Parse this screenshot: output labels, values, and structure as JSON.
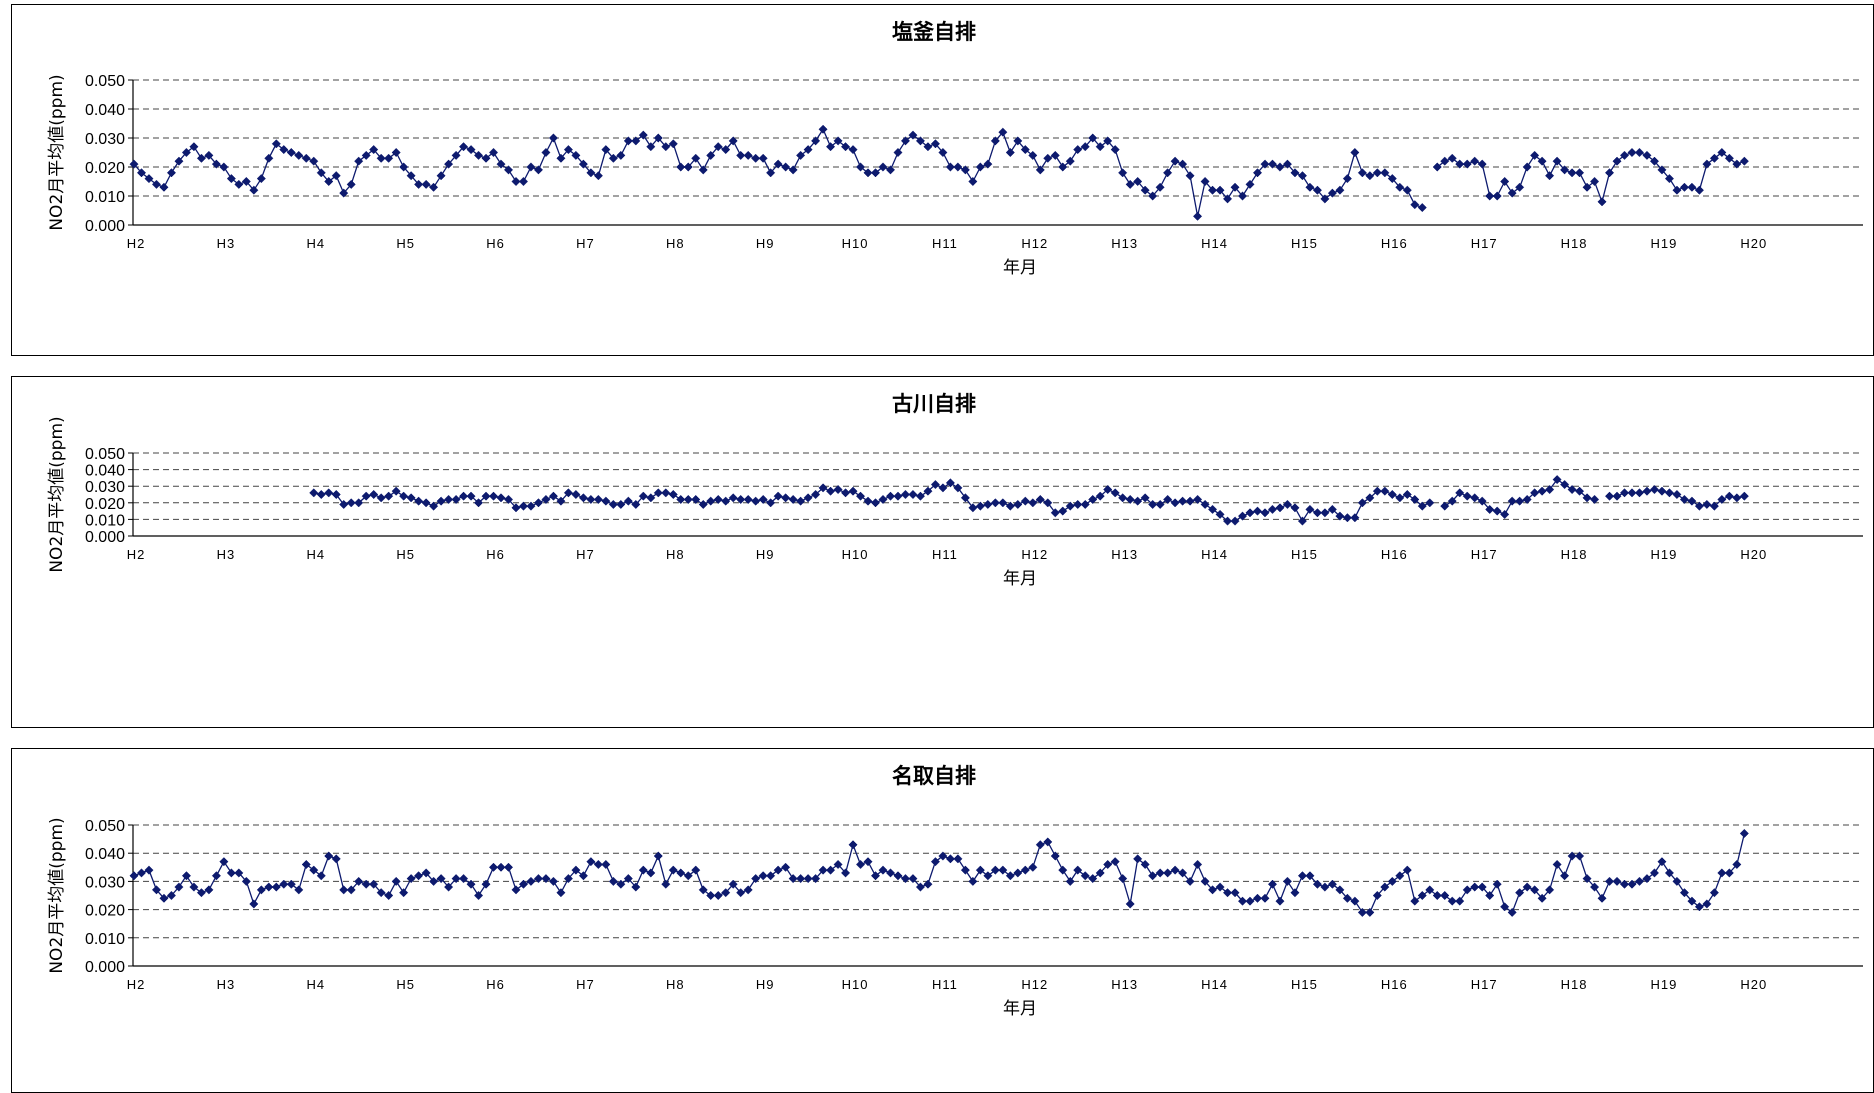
{
  "series_color": "#0d1a6e",
  "chart_data": [
    {
      "type": "line",
      "title": "塩釜自排",
      "xlabel": "年月",
      "ylabel": "NO2月平均値(ppm)",
      "ylim": [
        0,
        0.05
      ],
      "yticks": [
        "0.000",
        "0.010",
        "0.020",
        "0.030",
        "0.040",
        "0.050"
      ],
      "x_tick_labels": [
        "H2",
        "H3",
        "H4",
        "H5",
        "H6",
        "H7",
        "H8",
        "H9",
        "H10",
        "H11",
        "H12",
        "H13",
        "H14",
        "H15",
        "H16",
        "H17",
        "H18",
        "H19",
        "H20"
      ],
      "grid": "horizontal dashed",
      "start": "H2 April",
      "values": [
        0.021,
        0.018,
        0.016,
        0.014,
        0.013,
        0.018,
        0.022,
        0.025,
        0.027,
        0.023,
        0.024,
        0.021,
        0.02,
        0.016,
        0.014,
        0.015,
        0.012,
        0.016,
        0.023,
        0.028,
        0.026,
        0.025,
        0.024,
        0.023,
        0.022,
        0.018,
        0.015,
        0.017,
        0.011,
        0.014,
        0.022,
        0.024,
        0.026,
        0.023,
        0.023,
        0.025,
        0.02,
        0.017,
        0.014,
        0.014,
        0.013,
        0.017,
        0.021,
        0.024,
        0.027,
        0.026,
        0.024,
        0.023,
        0.025,
        0.021,
        0.019,
        0.015,
        0.015,
        0.02,
        0.019,
        0.025,
        0.03,
        0.023,
        0.026,
        0.024,
        0.021,
        0.018,
        0.017,
        0.026,
        0.023,
        0.024,
        0.029,
        0.029,
        0.031,
        0.027,
        0.03,
        0.027,
        0.028,
        0.02,
        0.02,
        0.023,
        0.019,
        0.024,
        0.027,
        0.026,
        0.029,
        0.024,
        0.024,
        0.023,
        0.023,
        0.018,
        0.021,
        0.02,
        0.019,
        0.024,
        0.026,
        0.029,
        0.033,
        0.027,
        0.029,
        0.027,
        0.026,
        0.02,
        0.018,
        0.018,
        0.02,
        0.019,
        0.025,
        0.029,
        0.031,
        0.029,
        0.027,
        0.028,
        0.025,
        0.02,
        0.02,
        0.019,
        0.015,
        0.02,
        0.021,
        0.029,
        0.032,
        0.025,
        0.029,
        0.026,
        0.024,
        0.019,
        0.023,
        0.024,
        0.02,
        0.022,
        0.026,
        0.027,
        0.03,
        0.027,
        0.029,
        0.026,
        0.018,
        0.014,
        0.015,
        0.012,
        0.01,
        0.013,
        0.018,
        0.022,
        0.021,
        0.017,
        0.003,
        0.015,
        0.012,
        0.012,
        0.009,
        0.013,
        0.01,
        0.014,
        0.018,
        0.021,
        0.021,
        0.02,
        0.021,
        0.018,
        0.017,
        0.013,
        0.012,
        0.009,
        0.011,
        0.012,
        0.016,
        0.025,
        0.018,
        0.017,
        0.018,
        0.018,
        0.016,
        0.013,
        0.012,
        0.007,
        0.006,
        null,
        0.02,
        0.022,
        0.023,
        0.021,
        0.021,
        0.022,
        0.021,
        0.01,
        0.01,
        0.015,
        0.011,
        0.013,
        0.02,
        0.024,
        0.022,
        0.017,
        0.022,
        0.019,
        0.018,
        0.018,
        0.013,
        0.015,
        0.008,
        0.018,
        0.022,
        0.024,
        0.025,
        0.025,
        0.024,
        0.022,
        0.019,
        0.016,
        0.012,
        0.013,
        0.013,
        0.012,
        0.021,
        0.023,
        0.025,
        0.023,
        0.021,
        0.022
      ]
    },
    {
      "type": "line",
      "title": "古川自排",
      "xlabel": "年月",
      "ylabel": "NO2月平均値(ppm)",
      "ylim": [
        0,
        0.05
      ],
      "yticks": [
        "0.000",
        "0.010",
        "0.020",
        "0.030",
        "0.040",
        "0.050"
      ],
      "x_tick_labels": [
        "H2",
        "H3",
        "H4",
        "H5",
        "H6",
        "H7",
        "H8",
        "H9",
        "H10",
        "H11",
        "H12",
        "H13",
        "H14",
        "H15",
        "H16",
        "H17",
        "H18",
        "H19",
        "H20"
      ],
      "grid": "horizontal dashed",
      "start": "H2 April",
      "values": [
        null,
        null,
        null,
        null,
        null,
        null,
        null,
        null,
        null,
        null,
        null,
        null,
        null,
        null,
        null,
        null,
        null,
        null,
        null,
        null,
        null,
        null,
        null,
        null,
        0.026,
        0.025,
        0.026,
        0.025,
        0.019,
        0.02,
        0.02,
        0.024,
        0.025,
        0.023,
        0.024,
        0.027,
        0.024,
        0.023,
        0.021,
        0.02,
        0.018,
        0.021,
        0.022,
        0.022,
        0.024,
        0.024,
        0.02,
        0.024,
        0.024,
        0.023,
        0.022,
        0.017,
        0.018,
        0.018,
        0.02,
        0.022,
        0.024,
        0.021,
        0.026,
        0.025,
        0.023,
        0.022,
        0.022,
        0.021,
        0.019,
        0.019,
        0.021,
        0.019,
        0.024,
        0.023,
        0.026,
        0.026,
        0.025,
        0.022,
        0.022,
        0.022,
        0.019,
        0.021,
        0.022,
        0.021,
        0.023,
        0.022,
        0.022,
        0.021,
        0.022,
        0.02,
        0.024,
        0.023,
        0.022,
        0.021,
        0.023,
        0.025,
        0.029,
        0.027,
        0.028,
        0.026,
        0.027,
        0.024,
        0.021,
        0.02,
        0.022,
        0.024,
        0.024,
        0.025,
        0.025,
        0.024,
        0.027,
        0.031,
        0.029,
        0.032,
        0.029,
        0.023,
        0.017,
        0.018,
        0.019,
        0.02,
        0.02,
        0.018,
        0.019,
        0.021,
        0.02,
        0.022,
        0.02,
        0.014,
        0.015,
        0.018,
        0.019,
        0.019,
        0.022,
        0.024,
        0.028,
        0.026,
        0.023,
        0.022,
        0.021,
        0.023,
        0.019,
        0.019,
        0.022,
        0.02,
        0.021,
        0.021,
        0.022,
        0.019,
        0.016,
        0.013,
        0.009,
        0.009,
        0.012,
        0.014,
        0.015,
        0.014,
        0.016,
        0.017,
        0.019,
        0.017,
        0.009,
        0.016,
        0.014,
        0.014,
        0.016,
        0.012,
        0.011,
        0.011,
        0.02,
        0.023,
        0.027,
        0.027,
        0.025,
        0.023,
        0.025,
        0.022,
        0.018,
        0.02,
        null,
        0.018,
        0.021,
        0.026,
        0.024,
        0.023,
        0.021,
        0.016,
        0.015,
        0.013,
        0.021,
        0.021,
        0.022,
        0.026,
        0.027,
        0.028,
        0.034,
        0.031,
        0.028,
        0.027,
        0.023,
        0.022,
        null,
        0.024,
        0.024,
        0.026,
        0.026,
        0.026,
        0.027,
        0.028,
        0.027,
        0.026,
        0.025,
        0.022,
        0.021,
        0.018,
        0.019,
        0.018,
        0.022,
        0.024,
        0.023,
        0.024
      ]
    },
    {
      "type": "line",
      "title": "名取自排",
      "xlabel": "年月",
      "ylabel": "NO2月平均値(ppm)",
      "ylim": [
        0,
        0.05
      ],
      "yticks": [
        "0.000",
        "0.010",
        "0.020",
        "0.030",
        "0.040",
        "0.050"
      ],
      "x_tick_labels": [
        "H2",
        "H3",
        "H4",
        "H5",
        "H6",
        "H7",
        "H8",
        "H9",
        "H10",
        "H11",
        "H12",
        "H13",
        "H14",
        "H15",
        "H16",
        "H17",
        "H18",
        "H19",
        "H20"
      ],
      "grid": "horizontal dashed",
      "start": "H2 April",
      "values": [
        0.032,
        0.033,
        0.034,
        0.027,
        0.024,
        0.025,
        0.028,
        0.032,
        0.028,
        0.026,
        0.027,
        0.032,
        0.037,
        0.033,
        0.033,
        0.03,
        0.022,
        0.027,
        0.028,
        0.028,
        0.029,
        0.029,
        0.027,
        0.036,
        0.034,
        0.032,
        0.039,
        0.038,
        0.027,
        0.027,
        0.03,
        0.029,
        0.029,
        0.026,
        0.025,
        0.03,
        0.026,
        0.031,
        0.032,
        0.033,
        0.03,
        0.031,
        0.028,
        0.031,
        0.031,
        0.029,
        0.025,
        0.029,
        0.035,
        0.035,
        0.035,
        0.027,
        0.029,
        0.03,
        0.031,
        0.031,
        0.03,
        0.026,
        0.031,
        0.034,
        0.032,
        0.037,
        0.036,
        0.036,
        0.03,
        0.029,
        0.031,
        0.028,
        0.034,
        0.033,
        0.039,
        0.029,
        0.034,
        0.033,
        0.032,
        0.034,
        0.027,
        0.025,
        0.025,
        0.026,
        0.029,
        0.026,
        0.027,
        0.031,
        0.032,
        0.032,
        0.034,
        0.035,
        0.031,
        0.031,
        0.031,
        0.031,
        0.034,
        0.034,
        0.036,
        0.033,
        0.043,
        0.036,
        0.037,
        0.032,
        0.034,
        0.033,
        0.032,
        0.031,
        0.031,
        0.028,
        0.029,
        0.037,
        0.039,
        0.038,
        0.038,
        0.034,
        0.03,
        0.034,
        0.032,
        0.034,
        0.034,
        0.032,
        0.033,
        0.034,
        0.035,
        0.043,
        0.044,
        0.039,
        0.034,
        0.03,
        0.034,
        0.032,
        0.031,
        0.033,
        0.036,
        0.037,
        0.031,
        0.022,
        0.038,
        0.036,
        0.032,
        0.033,
        0.033,
        0.034,
        0.033,
        0.03,
        0.036,
        0.03,
        0.027,
        0.028,
        0.026,
        0.026,
        0.023,
        0.023,
        0.024,
        0.024,
        0.029,
        0.023,
        0.03,
        0.026,
        0.032,
        0.032,
        0.029,
        0.028,
        0.029,
        0.027,
        0.024,
        0.023,
        0.019,
        0.019,
        0.025,
        0.028,
        0.03,
        0.032,
        0.034,
        0.023,
        0.025,
        0.027,
        0.025,
        0.025,
        0.023,
        0.023,
        0.027,
        0.028,
        0.028,
        0.025,
        0.029,
        0.021,
        0.019,
        0.026,
        0.028,
        0.027,
        0.024,
        0.027,
        0.036,
        0.032,
        0.039,
        0.039,
        0.031,
        0.028,
        0.024,
        0.03,
        0.03,
        0.029,
        0.029,
        0.03,
        0.031,
        0.033,
        0.037,
        0.033,
        0.03,
        0.026,
        0.023,
        0.021,
        0.022,
        0.026,
        0.033,
        0.033,
        0.036,
        0.047
      ]
    }
  ]
}
